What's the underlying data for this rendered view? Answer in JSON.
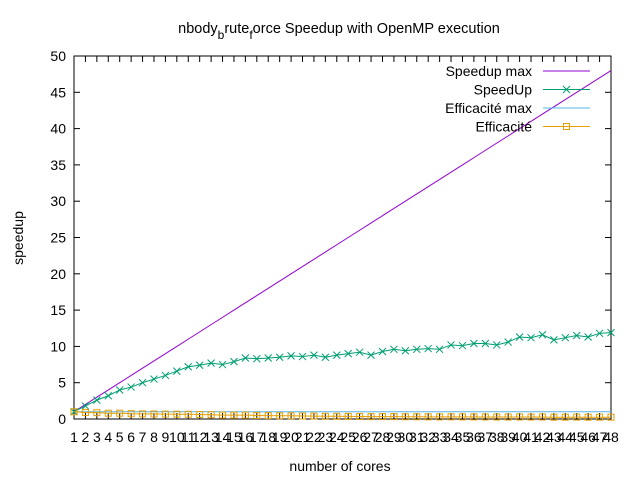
{
  "chart_data": {
    "type": "line",
    "title_parts": [
      "nbody",
      "b",
      "rute",
      "f",
      "orce Speedup with OpenMP execution"
    ],
    "xlabel": "number of cores",
    "ylabel": "speedup",
    "xlim": [
      1,
      48
    ],
    "ylim": [
      0,
      50
    ],
    "yticks": [
      0,
      5,
      10,
      15,
      20,
      25,
      30,
      35,
      40,
      45,
      50
    ],
    "x": [
      1,
      2,
      3,
      4,
      5,
      6,
      7,
      8,
      9,
      10,
      11,
      12,
      13,
      14,
      15,
      16,
      17,
      18,
      19,
      20,
      21,
      22,
      23,
      24,
      25,
      26,
      27,
      28,
      29,
      30,
      31,
      32,
      33,
      34,
      35,
      36,
      37,
      38,
      39,
      40,
      41,
      42,
      43,
      44,
      45,
      46,
      47,
      48
    ],
    "grid": false,
    "legend_position": "top-right",
    "series": [
      {
        "name": "Speedup max",
        "color": "#9400d3",
        "marker": "none",
        "values": [
          1,
          2,
          3,
          4,
          5,
          6,
          7,
          8,
          9,
          10,
          11,
          12,
          13,
          14,
          15,
          16,
          17,
          18,
          19,
          20,
          21,
          22,
          23,
          24,
          25,
          26,
          27,
          28,
          29,
          30,
          31,
          32,
          33,
          34,
          35,
          36,
          37,
          38,
          39,
          40,
          41,
          42,
          43,
          44,
          45,
          46,
          47,
          48
        ]
      },
      {
        "name": "SpeedUp",
        "color": "#009e73",
        "marker": "x",
        "values": [
          1.0,
          1.8,
          2.6,
          3.2,
          4.0,
          4.4,
          5.0,
          5.5,
          6.0,
          6.6,
          7.2,
          7.4,
          7.7,
          7.5,
          7.9,
          8.4,
          8.3,
          8.4,
          8.5,
          8.7,
          8.6,
          8.8,
          8.5,
          8.8,
          9.0,
          9.2,
          8.8,
          9.3,
          9.6,
          9.4,
          9.6,
          9.7,
          9.6,
          10.2,
          10.1,
          10.4,
          10.4,
          10.2,
          10.6,
          11.3,
          11.2,
          11.6,
          10.9,
          11.2,
          11.5,
          11.3,
          11.8,
          11.9
        ]
      },
      {
        "name": "Efficacité max",
        "color": "#56b4e9",
        "marker": "none",
        "values": [
          1,
          1,
          1,
          1,
          1,
          1,
          1,
          1,
          1,
          1,
          1,
          1,
          1,
          1,
          1,
          1,
          1,
          1,
          1,
          1,
          1,
          1,
          1,
          1,
          1,
          1,
          1,
          1,
          1,
          1,
          1,
          1,
          1,
          1,
          1,
          1,
          1,
          1,
          1,
          1,
          1,
          1,
          1,
          1,
          1,
          1,
          1,
          1
        ]
      },
      {
        "name": "Efficacité",
        "color": "#e69f00",
        "marker": "square",
        "values": [
          1.0,
          0.9,
          0.87,
          0.8,
          0.8,
          0.73,
          0.71,
          0.69,
          0.67,
          0.66,
          0.65,
          0.62,
          0.59,
          0.54,
          0.53,
          0.53,
          0.49,
          0.47,
          0.45,
          0.44,
          0.41,
          0.4,
          0.37,
          0.37,
          0.36,
          0.35,
          0.33,
          0.33,
          0.33,
          0.31,
          0.31,
          0.3,
          0.29,
          0.3,
          0.29,
          0.29,
          0.28,
          0.27,
          0.27,
          0.28,
          0.27,
          0.28,
          0.25,
          0.25,
          0.26,
          0.25,
          0.25,
          0.25
        ]
      }
    ]
  }
}
